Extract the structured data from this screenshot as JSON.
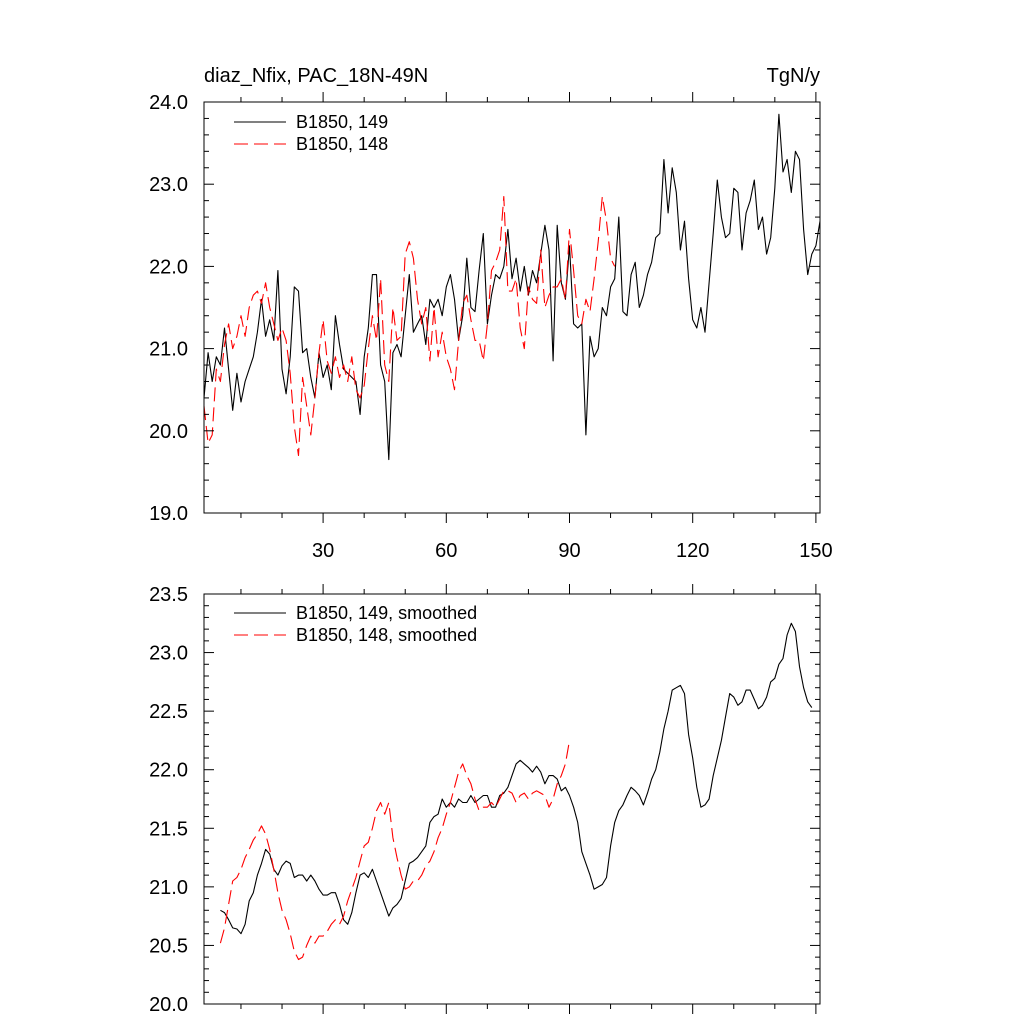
{
  "header": {
    "left_title": "diaz_Nfix, PAC_18N-49N",
    "right_title": "TgN/y"
  },
  "colors": {
    "series_149": "#000000",
    "series_148": "#ff0000"
  },
  "chart_data": [
    {
      "type": "line",
      "title": "diaz_Nfix, PAC_18N-49N",
      "units": "TgN/y",
      "xlim": [
        1,
        151
      ],
      "ylim": [
        19.0,
        24.0
      ],
      "x_ticks": [
        30,
        60,
        90,
        120,
        150
      ],
      "x_tick_labels": [
        "30",
        "60",
        "90",
        "120",
        "150"
      ],
      "y_ticks": [
        19.0,
        20.0,
        21.0,
        22.0,
        23.0,
        24.0
      ],
      "y_tick_labels": [
        "19.0",
        "20.0",
        "21.0",
        "22.0",
        "23.0",
        "24.0"
      ],
      "legend": [
        "B1850, 149",
        "B1850, 148"
      ],
      "legend_position": "top-left",
      "series": [
        {
          "name": "B1850, 149",
          "style": "solid",
          "x_start": 1,
          "values": [
            20.4,
            20.95,
            20.6,
            20.9,
            20.8,
            21.25,
            20.75,
            20.25,
            20.7,
            20.35,
            20.6,
            20.75,
            20.9,
            21.2,
            21.6,
            21.15,
            21.35,
            21.1,
            21.95,
            20.75,
            20.45,
            20.9,
            21.75,
            21.7,
            20.95,
            21.0,
            20.65,
            20.4,
            20.95,
            20.65,
            20.8,
            20.5,
            21.4,
            21.05,
            20.75,
            20.7,
            20.65,
            20.6,
            20.2,
            20.9,
            21.25,
            21.9,
            21.9,
            20.8,
            20.6,
            19.65,
            20.95,
            21.05,
            20.9,
            21.4,
            21.9,
            21.2,
            21.3,
            21.4,
            21.05,
            21.6,
            21.5,
            21.6,
            21.4,
            21.75,
            21.9,
            21.6,
            21.1,
            21.4,
            22.1,
            21.5,
            21.45,
            21.95,
            22.4,
            21.3,
            21.65,
            21.9,
            21.85,
            22.0,
            22.45,
            21.85,
            22.1,
            21.7,
            22.0,
            21.65,
            21.95,
            21.8,
            22.15,
            22.5,
            22.2,
            20.85,
            22.5,
            21.8,
            21.6,
            22.25,
            21.3,
            21.25,
            21.3,
            19.95,
            21.15,
            20.9,
            21.0,
            21.5,
            21.4,
            21.75,
            21.85,
            22.6,
            21.45,
            21.4,
            21.9,
            22.05,
            21.5,
            21.65,
            21.9,
            22.05,
            22.35,
            22.4,
            23.3,
            22.65,
            23.2,
            22.9,
            22.2,
            22.55,
            21.85,
            21.35,
            21.25,
            21.5,
            21.2,
            21.8,
            22.4,
            23.05,
            22.6,
            22.35,
            22.4,
            22.95,
            22.9,
            22.2,
            22.65,
            22.8,
            23.05,
            22.45,
            22.6,
            22.15,
            22.35,
            22.95,
            23.85,
            23.15,
            23.3,
            22.9,
            23.4,
            23.3,
            22.45,
            21.9,
            22.15,
            22.25,
            22.55
          ]
        },
        {
          "name": "B1850, 148",
          "style": "dashed",
          "x_start": 1,
          "values": [
            20.3,
            19.85,
            19.95,
            20.75,
            20.6,
            21.05,
            21.3,
            21.0,
            21.15,
            21.4,
            21.15,
            21.5,
            21.65,
            21.7,
            21.55,
            21.8,
            21.5,
            21.3,
            21.1,
            21.25,
            21.1,
            20.7,
            20.05,
            19.7,
            20.65,
            20.3,
            19.95,
            20.4,
            20.95,
            21.35,
            20.85,
            20.7,
            20.9,
            20.65,
            20.8,
            20.6,
            20.9,
            20.5,
            20.4,
            20.55,
            21.0,
            21.4,
            21.1,
            21.85,
            20.8,
            20.6,
            21.5,
            21.1,
            21.15,
            22.15,
            22.3,
            22.1,
            21.6,
            21.3,
            21.5,
            20.85,
            21.5,
            20.9,
            21.2,
            20.9,
            20.75,
            20.5,
            21.1,
            21.55,
            21.65,
            21.35,
            21.1,
            21.1,
            20.85,
            21.3,
            21.95,
            22.05,
            22.2,
            22.85,
            21.7,
            21.7,
            21.85,
            21.25,
            21.0,
            21.75,
            21.6,
            21.55,
            22.2,
            21.5,
            21.65,
            21.75,
            21.75,
            21.85,
            21.6,
            22.45,
            21.95,
            21.4,
            21.3,
            21.6,
            21.45,
            21.85,
            22.3,
            22.85,
            22.55,
            22.1,
            22.0
          ]
        }
      ]
    },
    {
      "type": "line",
      "title": "",
      "xlim": [
        1,
        151
      ],
      "ylim": [
        20.0,
        23.5
      ],
      "x_ticks": [
        30,
        60,
        90,
        120,
        150
      ],
      "x_tick_labels": [],
      "y_ticks": [
        20.0,
        20.5,
        21.0,
        21.5,
        22.0,
        22.5,
        23.0,
        23.5
      ],
      "y_tick_labels": [
        "20.0",
        "20.5",
        "21.0",
        "21.5",
        "22.0",
        "22.5",
        "23.0",
        "23.5"
      ],
      "legend": [
        "B1850, 149, smoothed",
        "B1850, 148, smoothed"
      ],
      "legend_position": "top-left",
      "series": [
        {
          "name": "B1850, 149, smoothed",
          "style": "solid",
          "x_start": 5,
          "values": [
            20.8,
            20.78,
            20.72,
            20.65,
            20.64,
            20.6,
            20.68,
            20.88,
            20.95,
            21.1,
            21.2,
            21.32,
            21.28,
            21.15,
            21.1,
            21.18,
            21.22,
            21.2,
            21.08,
            21.1,
            21.1,
            21.05,
            21.1,
            21.05,
            20.98,
            20.93,
            20.93,
            20.95,
            20.95,
            20.85,
            20.72,
            20.68,
            20.78,
            20.95,
            21.1,
            21.12,
            21.08,
            21.15,
            21.05,
            20.95,
            20.85,
            20.75,
            20.82,
            20.85,
            20.9,
            21.05,
            21.2,
            21.22,
            21.25,
            21.3,
            21.35,
            21.55,
            21.6,
            21.62,
            21.75,
            21.68,
            21.72,
            21.68,
            21.75,
            21.72,
            21.72,
            21.78,
            21.72,
            21.75,
            21.78,
            21.78,
            21.68,
            21.68,
            21.78,
            21.8,
            21.85,
            21.95,
            22.05,
            22.08,
            22.05,
            22.02,
            21.98,
            22.03,
            21.98,
            21.88,
            21.95,
            21.95,
            21.92,
            21.82,
            21.85,
            21.78,
            21.68,
            21.55,
            21.3,
            21.2,
            21.1,
            20.98,
            21.0,
            21.02,
            21.08,
            21.35,
            21.55,
            21.65,
            21.7,
            21.78,
            21.85,
            21.82,
            21.78,
            21.7,
            21.8,
            21.92,
            22.0,
            22.15,
            22.35,
            22.5,
            22.68,
            22.7,
            22.72,
            22.65,
            22.3,
            22.1,
            21.85,
            21.68,
            21.7,
            21.75,
            21.95,
            22.1,
            22.25,
            22.45,
            22.65,
            22.62,
            22.55,
            22.58,
            22.68,
            22.68,
            22.6,
            22.52,
            22.55,
            22.62,
            22.75,
            22.78,
            22.9,
            22.95,
            23.15,
            23.25,
            23.18,
            22.88,
            22.7,
            22.58,
            22.53
          ]
        },
        {
          "name": "B1850, 148, smoothed",
          "style": "dashed",
          "x_start": 5,
          "values": [
            20.52,
            20.65,
            20.85,
            21.05,
            21.08,
            21.15,
            21.25,
            21.32,
            21.4,
            21.45,
            21.52,
            21.45,
            21.32,
            21.15,
            20.95,
            20.8,
            20.72,
            20.6,
            20.45,
            20.38,
            20.4,
            20.5,
            20.58,
            20.52,
            20.58,
            20.58,
            20.62,
            20.68,
            20.72,
            20.68,
            20.75,
            20.88,
            20.98,
            21.08,
            21.22,
            21.35,
            21.38,
            21.5,
            21.65,
            21.72,
            21.62,
            21.72,
            21.42,
            21.25,
            21.1,
            20.98,
            21.0,
            21.05,
            21.05,
            21.1,
            21.18,
            21.22,
            21.3,
            21.42,
            21.5,
            21.62,
            21.72,
            21.85,
            21.98,
            22.05,
            21.95,
            21.88,
            21.75,
            21.65,
            21.68,
            21.68,
            21.72,
            21.68,
            21.75,
            21.82,
            21.82,
            21.8,
            21.72,
            21.78,
            21.8,
            21.75,
            21.8,
            21.82,
            21.8,
            21.78,
            21.68,
            21.75,
            21.88,
            21.95,
            22.05,
            22.25
          ]
        }
      ]
    }
  ]
}
